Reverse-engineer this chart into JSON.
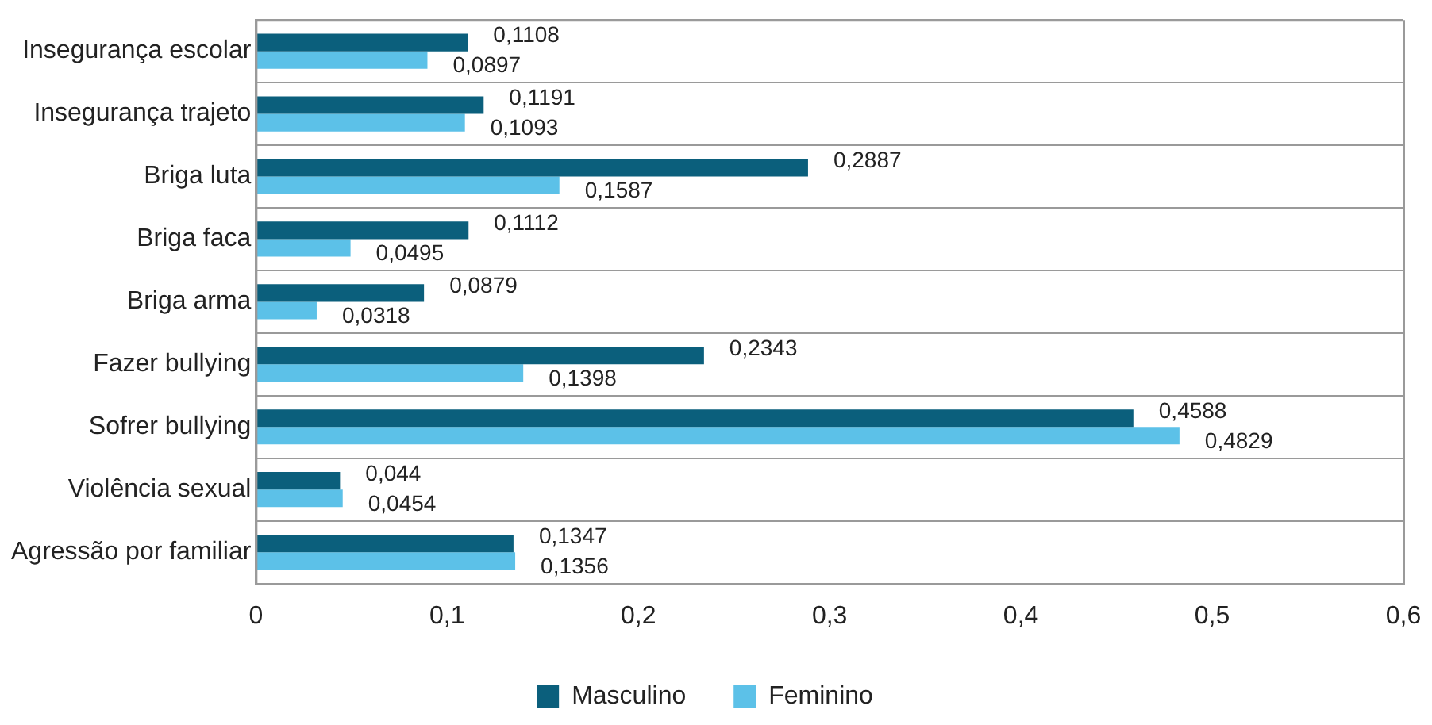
{
  "chart_data": {
    "type": "bar",
    "orientation": "horizontal",
    "categories": [
      "Insegurança escolar",
      "Insegurança trajeto",
      "Briga luta",
      "Briga faca",
      "Briga arma",
      "Fazer bullying",
      "Sofrer bullying",
      "Violência sexual",
      "Agressão por familiar"
    ],
    "series": [
      {
        "name": "Masculino",
        "color": "#0b5f7c",
        "values": [
          0.1108,
          0.1191,
          0.2887,
          0.1112,
          0.0879,
          0.2343,
          0.4588,
          0.044,
          0.1347
        ],
        "value_labels": [
          "0,1108",
          "0,1191",
          "0,2887",
          "0,1112",
          "0,0879",
          "0,2343",
          "0,4588",
          "0,044",
          "0,1347"
        ]
      },
      {
        "name": "Feminino",
        "color": "#5cc1e8",
        "values": [
          0.0897,
          0.1093,
          0.1587,
          0.0495,
          0.0318,
          0.1398,
          0.4829,
          0.0454,
          0.1356
        ],
        "value_labels": [
          "0,0897",
          "0,1093",
          "0,1587",
          "0,0495",
          "0,0318",
          "0,1398",
          "0,4829",
          "0,0454",
          "0,1356"
        ]
      }
    ],
    "xlim": [
      0,
      0.6
    ],
    "xticks": [
      0,
      {
        "value": 0.1,
        "label": "0,1"
      },
      {
        "value": 0.2,
        "label": "0,2"
      },
      {
        "value": 0.3,
        "label": "0,3"
      },
      {
        "value": 0.4,
        "label": "0,4"
      },
      {
        "value": 0.5,
        "label": "0,5"
      },
      {
        "value": 0.6,
        "label": "0,6"
      }
    ],
    "grid": "y",
    "legend": "bottom"
  }
}
